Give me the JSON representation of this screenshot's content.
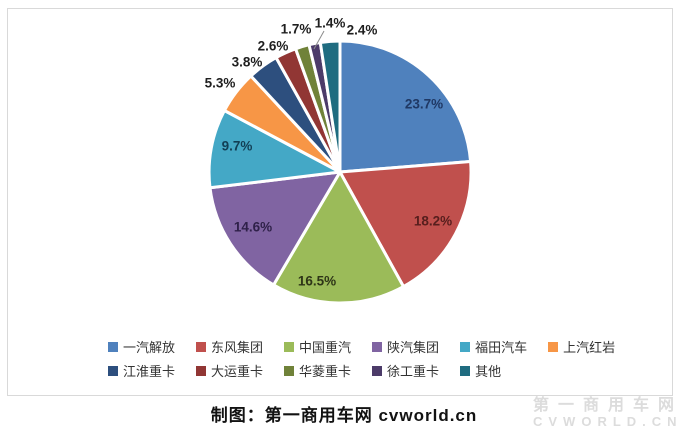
{
  "chart_data": {
    "type": "pie",
    "title": "",
    "start_angle_deg": 0,
    "direction": "clockwise",
    "data_label_format": "0.0%",
    "legend_position": "bottom",
    "slices": [
      {
        "label": "一汽解放",
        "value": 23.7,
        "color": "#4F81BD",
        "label_color": "#1F3864"
      },
      {
        "label": "东风集团",
        "value": 18.2,
        "color": "#C0504D",
        "label_color": "#561E1D"
      },
      {
        "label": "中国重汽",
        "value": 16.5,
        "color": "#9BBB59",
        "label_color": "#2E3517"
      },
      {
        "label": "陕汽集团",
        "value": 14.6,
        "color": "#8064A2",
        "label_color": "#2F2149"
      },
      {
        "label": "福田汽车",
        "value": 9.7,
        "color": "#44A8C6",
        "label_color": "#123F55"
      },
      {
        "label": "上汽红岩",
        "value": 5.3,
        "color": "#F79646",
        "label_color": "#1F1F1F"
      },
      {
        "label": "江淮重卡",
        "value": 3.8,
        "color": "#2D4F7E",
        "label_color": "#1F1F1F"
      },
      {
        "label": "大运重卡",
        "value": 2.6,
        "color": "#913634",
        "label_color": "#1F1F1F"
      },
      {
        "label": "华菱重卡",
        "value": 1.7,
        "color": "#708239",
        "label_color": "#1F1F1F"
      },
      {
        "label": "徐工重卡",
        "value": 1.4,
        "color": "#4C3B69",
        "label_color": "#1F1F1F"
      },
      {
        "label": "其他",
        "value": 2.4,
        "color": "#1F6C80",
        "label_color": "#1F1F1F"
      }
    ]
  },
  "legend": {
    "row_break_index": 6
  },
  "caption": {
    "text": "制图：第一商用车网 cvworld.cn"
  },
  "watermark": {
    "line1": "第一商用车网",
    "line2": "CVWORLD.CN"
  }
}
